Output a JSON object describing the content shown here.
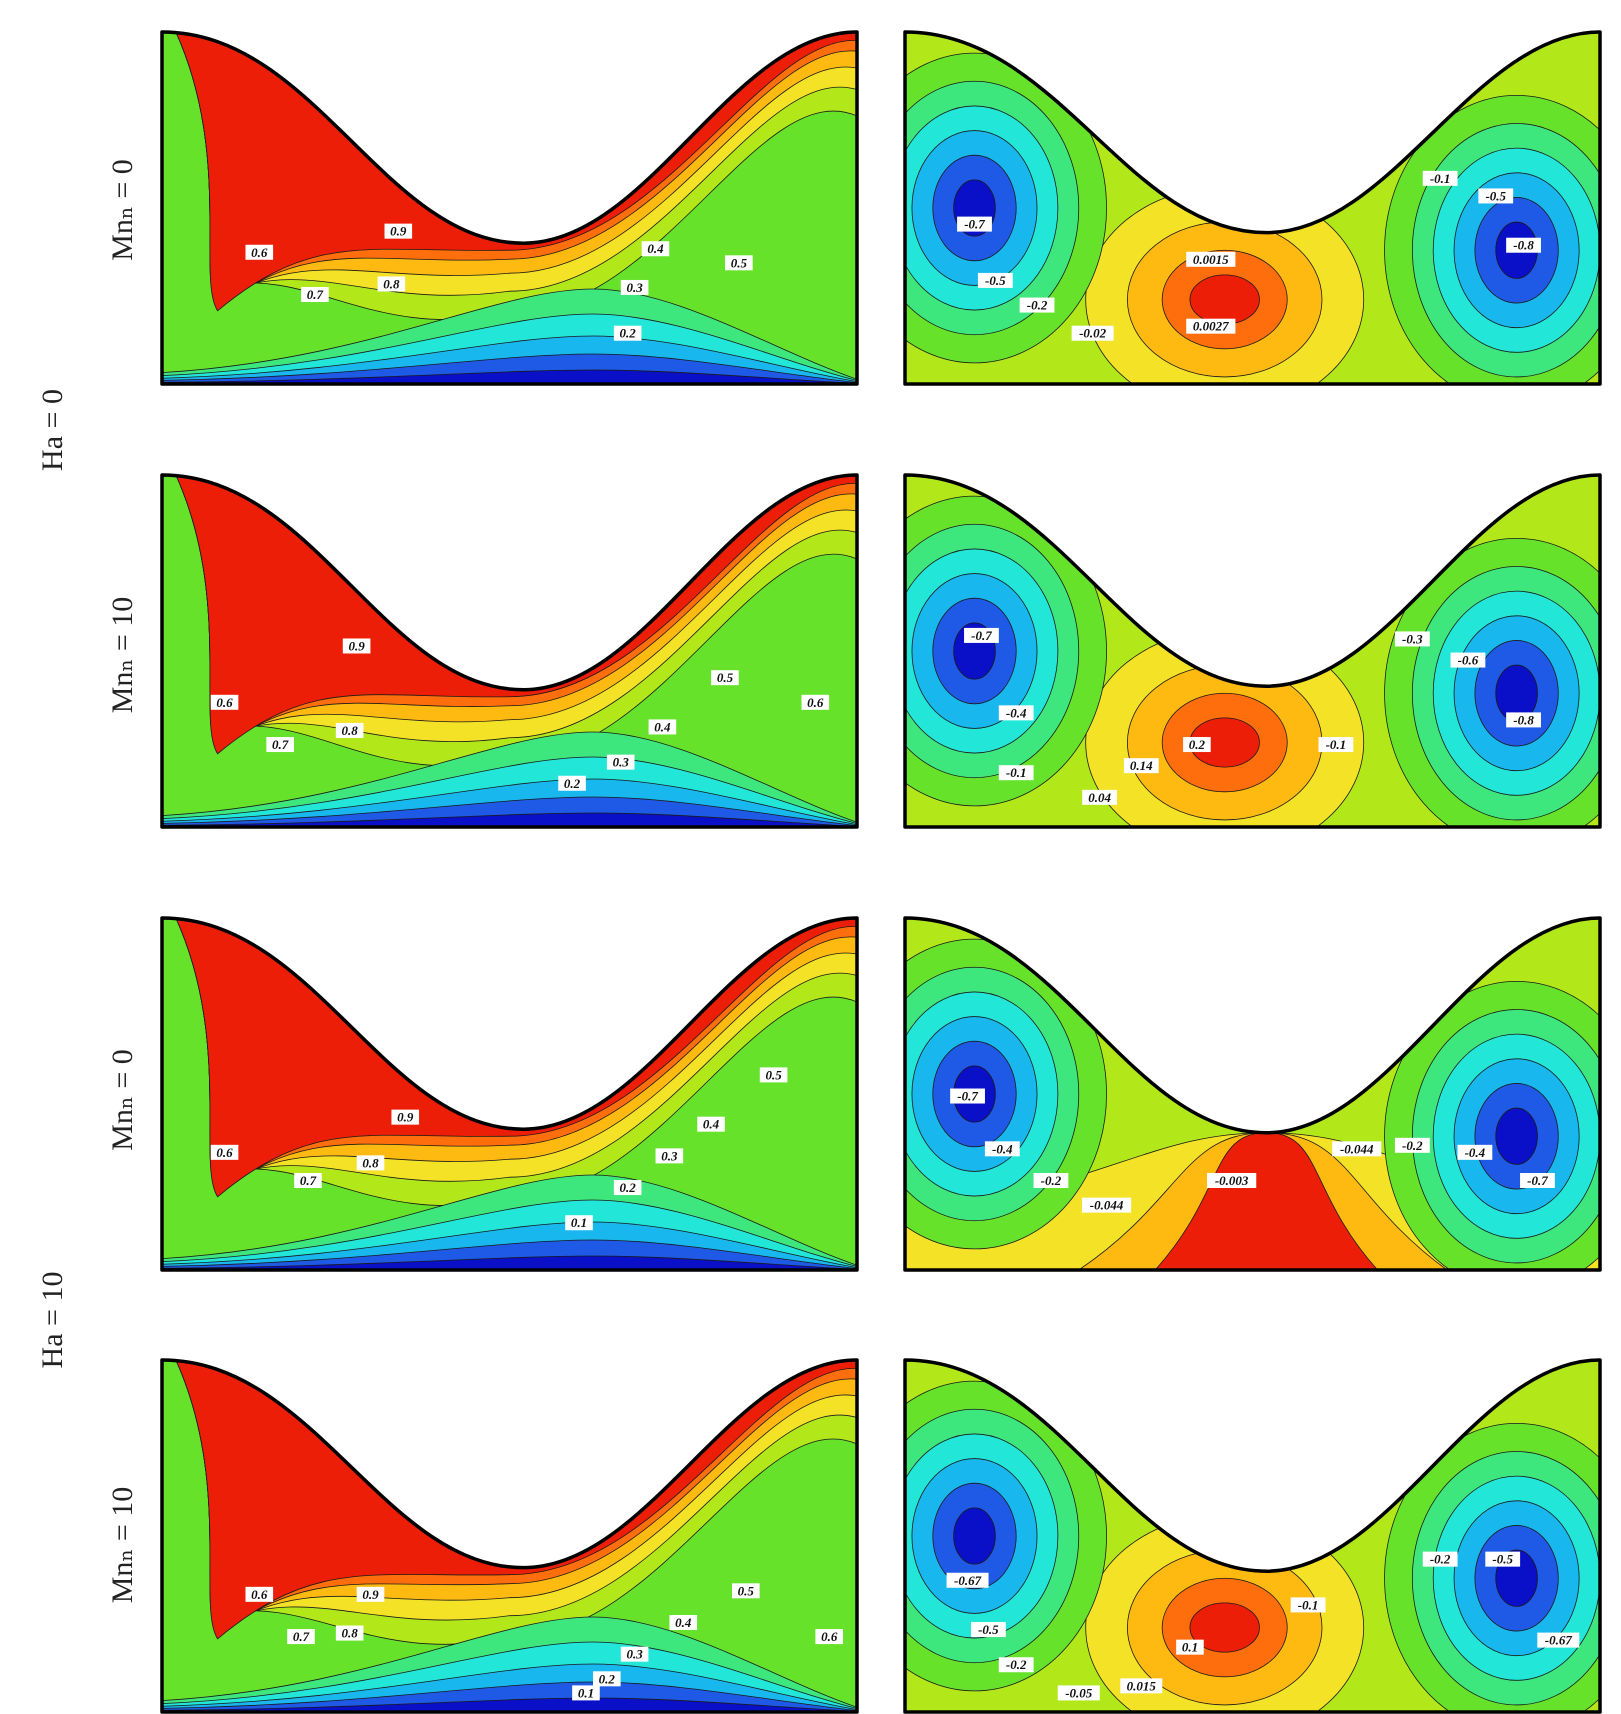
{
  "colors": {
    "scale": [
      "#0a10c8",
      "#1f5ae6",
      "#18b8ee",
      "#22e6d8",
      "#3ee67e",
      "#66e22a",
      "#b2e81a",
      "#f4e226",
      "#ffba12",
      "#ff6e0c",
      "#ec1e08"
    ]
  },
  "ha_labels": [
    "Ha = 0",
    "Ha = 10"
  ],
  "mnf_labels": [
    "Mnₙ = 0",
    "Mnₙ = 10",
    "Mnₙ = 0",
    "Mnₙ = 10"
  ],
  "panels": [
    {
      "id": "ha0-mnf0-isotherms",
      "labels": [
        "0.9",
        "0.6",
        "0.8",
        "0.7",
        "0.4",
        "0.5",
        "0.3",
        "0.2"
      ]
    },
    {
      "id": "ha0-mnf0-streamlines",
      "labels": [
        "-0.7",
        "-0.5",
        "-0.2",
        "-0.02",
        "0.0015",
        "0.0027",
        "-0.1",
        "-0.5",
        "-0.8"
      ]
    },
    {
      "id": "ha0-mnf10-isotherms",
      "labels": [
        "0.9",
        "0.6",
        "0.8",
        "0.7",
        "0.5",
        "0.4",
        "0.6",
        "0.3",
        "0.2"
      ]
    },
    {
      "id": "ha0-mnf10-streamlines",
      "labels": [
        "-0.7",
        "-0.4",
        "-0.1",
        "0.04",
        "0.2",
        "0.14",
        "-0.3",
        "-0.6",
        "-0.8",
        "-0.1"
      ]
    },
    {
      "id": "ha10-mnf0-isotherms",
      "labels": [
        "0.9",
        "0.6",
        "0.8",
        "0.7",
        "0.5",
        "0.4",
        "0.3",
        "0.2",
        "0.1"
      ]
    },
    {
      "id": "ha10-mnf0-streamlines",
      "labels": [
        "-0.7",
        "-0.4",
        "-0.2",
        "-0.044",
        "-0.003",
        "-0.044",
        "-0.2",
        "-0.4",
        "-0.7"
      ]
    },
    {
      "id": "ha10-mnf10-isotherms",
      "labels": [
        "0.6",
        "0.9",
        "0.7",
        "0.8",
        "0.5",
        "0.4",
        "0.6",
        "0.3",
        "0.2",
        "0.1"
      ]
    },
    {
      "id": "ha10-mnf10-streamlines",
      "labels": [
        "-0.67",
        "-0.5",
        "-0.2",
        "-0.05",
        "0.015",
        "0.1",
        "-0.2",
        "-0.5",
        "-0.1",
        "-0.67"
      ]
    }
  ]
}
